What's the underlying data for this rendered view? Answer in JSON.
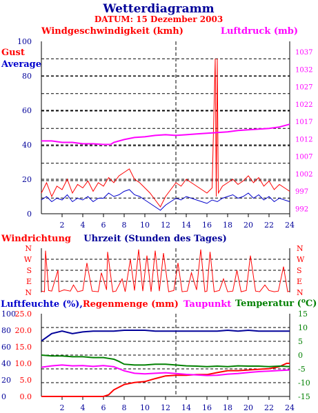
{
  "header": {
    "title": "Wetterdiagramm",
    "subtitle": "DATUM: 15 Dezember 2003"
  },
  "colors": {
    "red": "#ff0000",
    "blue": "#0000cc",
    "magenta": "#ff00ff",
    "green": "#008000",
    "darkblue": "#000099",
    "grid": "#000000"
  },
  "chart_data": [
    {
      "type": "line",
      "ylabel": "Windgeschwindigkeit (kmh)",
      "y2label": "Luftdruck (mb)",
      "legend_left": [
        "Gust",
        "Average"
      ],
      "xlim": [
        0,
        24
      ],
      "ylim": [
        0,
        100
      ],
      "y2lim": [
        990.5,
        1040
      ],
      "y_ticks": [
        "0",
        "20",
        "40",
        "60",
        "80",
        "100"
      ],
      "y2_ticks": [
        "992",
        "997",
        "1002",
        "1007",
        "1012",
        "1017",
        "1022",
        "1027",
        "1032",
        "1037"
      ],
      "x_ticks": [
        "2",
        "4",
        "6",
        "8",
        "10",
        "12",
        "14",
        "16",
        "18",
        "20",
        "22",
        "24"
      ],
      "grid": true,
      "series": [
        {
          "name": "Gust",
          "color": "red",
          "axis": "left",
          "x": [
            0,
            0.5,
            1,
            1.5,
            2,
            2.5,
            3,
            3.5,
            4,
            4.5,
            5,
            5.5,
            6,
            6.5,
            7,
            7.5,
            8,
            8.5,
            9,
            9.5,
            10,
            10.5,
            11,
            11.5,
            12,
            12.5,
            13,
            13.5,
            14,
            14.5,
            15,
            15.5,
            16,
            16.5,
            16.8,
            16.9,
            17,
            17.1,
            17.5,
            18,
            18.5,
            19,
            19.5,
            20,
            20.5,
            21,
            21.5,
            22,
            22.5,
            23,
            23.5,
            24
          ],
          "values": [
            12,
            18,
            10,
            16,
            14,
            20,
            12,
            17,
            15,
            19,
            13,
            18,
            16,
            21,
            18,
            22,
            24,
            26,
            20,
            18,
            15,
            12,
            8,
            4,
            10,
            14,
            18,
            16,
            20,
            18,
            16,
            14,
            12,
            15,
            90,
            10,
            90,
            12,
            16,
            18,
            20,
            17,
            19,
            22,
            18,
            21,
            16,
            19,
            14,
            17,
            15,
            13
          ]
        },
        {
          "name": "Average",
          "color": "blue",
          "axis": "left",
          "x": [
            0,
            0.5,
            1,
            1.5,
            2,
            2.5,
            3,
            3.5,
            4,
            4.5,
            5,
            5.5,
            6,
            6.5,
            7,
            7.5,
            8,
            8.5,
            9,
            9.5,
            10,
            10.5,
            11,
            11.5,
            12,
            12.5,
            13,
            13.5,
            14,
            14.5,
            15,
            15.5,
            16,
            16.5,
            17,
            17.5,
            18,
            18.5,
            19,
            19.5,
            20,
            20.5,
            21,
            21.5,
            22,
            22.5,
            23,
            23.5,
            24
          ],
          "values": [
            8,
            10,
            7,
            9,
            8,
            11,
            7,
            9,
            8,
            10,
            7,
            9,
            9,
            12,
            10,
            11,
            13,
            14,
            11,
            10,
            8,
            6,
            4,
            2,
            5,
            7,
            9,
            8,
            10,
            9,
            8,
            7,
            6,
            8,
            7,
            9,
            10,
            11,
            9,
            10,
            12,
            9,
            11,
            8,
            10,
            7,
            9,
            8,
            7
          ]
        },
        {
          "name": "Luftdruck",
          "color": "magenta",
          "axis": "right",
          "x": [
            0,
            1,
            2,
            3,
            4,
            5,
            6,
            6.7,
            7,
            8,
            9,
            10,
            11,
            12,
            13,
            14,
            15,
            16,
            17,
            18,
            19,
            20,
            21,
            22,
            23,
            24
          ],
          "values": [
            1011.4,
            1011.4,
            1011.0,
            1011.0,
            1010.6,
            1010.6,
            1010.4,
            1010.4,
            1011.0,
            1011.8,
            1012.4,
            1012.6,
            1013.0,
            1013.2,
            1013.0,
            1013.2,
            1013.4,
            1013.6,
            1013.8,
            1014.0,
            1014.4,
            1014.6,
            1014.8,
            1015.0,
            1015.4,
            1016.2
          ]
        }
      ]
    },
    {
      "type": "line",
      "ylabel": "Windrichtung",
      "xlabel": "Uhrzeit (Stunden des Tages)",
      "xlim": [
        0,
        24
      ],
      "y_ticks": [
        "N",
        "W",
        "S",
        "E",
        "N"
      ],
      "y_values": [
        0,
        90,
        180,
        270,
        360
      ],
      "grid": true,
      "series": [
        {
          "name": "Windrichtung",
          "color": "red",
          "x": [
            0,
            0.3,
            0.4,
            0.7,
            1.0,
            1.6,
            1.7,
            2.2,
            2.8,
            3.1,
            3.5,
            4.0,
            4.4,
            4.9,
            5.5,
            5.8,
            6.3,
            6.4,
            6.9,
            7.2,
            7.8,
            8.1,
            8.6,
            9.0,
            9.4,
            9.8,
            10.2,
            10.6,
            11.0,
            11.4,
            11.8,
            12.3,
            12.8,
            13.2,
            13.6,
            14.1,
            14.5,
            15.0,
            15.4,
            15.8,
            16.0,
            16.3,
            16.7,
            17.2,
            17.6,
            18.0,
            18.5,
            18.9,
            19.3,
            19.8,
            20.2,
            20.7,
            21.1,
            21.6,
            22.0,
            22.5,
            22.9,
            23.4,
            23.8,
            24
          ],
          "values": [
            350,
            355,
            20,
            345,
            350,
            180,
            355,
            340,
            350,
            300,
            355,
            345,
            120,
            350,
            355,
            200,
            340,
            30,
            355,
            350,
            250,
            355,
            90,
            345,
            10,
            350,
            60,
            355,
            20,
            350,
            40,
            355,
            345,
            120,
            355,
            350,
            200,
            340,
            10,
            355,
            350,
            30,
            355,
            345,
            250,
            355,
            350,
            180,
            355,
            345,
            60,
            350,
            355,
            300,
            345,
            355,
            350,
            150,
            355,
            350
          ]
        }
      ]
    },
    {
      "type": "line",
      "xlim": [
        0,
        24
      ],
      "ylim": [
        0,
        100
      ],
      "y2lim": [
        -15,
        15
      ],
      "labels": {
        "humidity_rain": "Luftfeuchte (%),",
        "rain": "Regenmenge (mm)",
        "dewpoint": "Taupunkt",
        "temperature": "Temperatur (",
        "temperature_unit": "C)",
        "degree": "o"
      },
      "y_ticks_humidity": [
        "0",
        "20",
        "40",
        "60",
        "80",
        "100"
      ],
      "y_ticks_rain": [
        "0.0",
        "5.0",
        "10.0",
        "15.0",
        "20.0",
        "25.0"
      ],
      "y2_ticks": [
        "-15",
        "-10",
        "-5",
        "0",
        "5",
        "10",
        "15"
      ],
      "x_ticks": [
        "2",
        "4",
        "6",
        "8",
        "10",
        "12",
        "14",
        "16",
        "18",
        "20",
        "22",
        "24"
      ],
      "grid": true,
      "series": [
        {
          "name": "Luftfeuchte",
          "color": "darkblue",
          "axis": "humidity",
          "x": [
            0,
            1,
            2,
            3,
            4,
            5,
            6,
            7,
            8,
            9,
            10,
            11,
            12,
            13,
            14,
            15,
            16,
            17,
            18,
            19,
            20,
            21,
            22,
            23,
            24
          ],
          "values": [
            67,
            76,
            79,
            76,
            78,
            79,
            79,
            79,
            80,
            80,
            80,
            79,
            79,
            79,
            79,
            79,
            79,
            79,
            80,
            79,
            80,
            79,
            79,
            79,
            79
          ]
        },
        {
          "name": "Regenmenge",
          "color": "red",
          "axis": "rain",
          "x": [
            0,
            1,
            2,
            3,
            4,
            5,
            6,
            6.5,
            7,
            8,
            9,
            10,
            11,
            12,
            13,
            14,
            15,
            16,
            17,
            18,
            19,
            20,
            21,
            22,
            23,
            23.7,
            24
          ],
          "values": [
            0,
            0,
            0,
            0,
            0,
            0,
            0,
            0.5,
            2,
            3.6,
            4.2,
            4.5,
            5.4,
            6.2,
            6.4,
            6.4,
            6.6,
            6.6,
            7.2,
            7.8,
            7.8,
            8,
            8.2,
            8.4,
            9,
            10,
            10
          ]
        },
        {
          "name": "Taupunkt",
          "color": "magenta",
          "axis": "temperature",
          "x": [
            0,
            1,
            2,
            3,
            4,
            5,
            6,
            7,
            8,
            9,
            10,
            11,
            12,
            13,
            14,
            15,
            16,
            17,
            18,
            19,
            20,
            21,
            22,
            23,
            24
          ],
          "values": [
            -4.4,
            -3.9,
            -3.6,
            -3.9,
            -3.8,
            -4.1,
            -3.8,
            -4.2,
            -5.7,
            -6.6,
            -6.8,
            -6.6,
            -6.4,
            -6.7,
            -7.0,
            -7.2,
            -7.4,
            -7.3,
            -6.9,
            -6.7,
            -6.3,
            -6.0,
            -5.8,
            -5.6,
            -5.4
          ]
        },
        {
          "name": "Temperatur",
          "color": "green",
          "axis": "temperature",
          "x": [
            0,
            1,
            2,
            3,
            4,
            5,
            6,
            6.5,
            7,
            7.5,
            8,
            9,
            10,
            11,
            12,
            13,
            14,
            15,
            16,
            17,
            18,
            19,
            20,
            21,
            22,
            23,
            24
          ],
          "values": [
            0.0,
            -0.3,
            -0.3,
            -0.6,
            -0.6,
            -0.9,
            -0.9,
            -1.2,
            -1.5,
            -2.3,
            -3.3,
            -3.6,
            -3.6,
            -3.3,
            -3.3,
            -3.6,
            -3.9,
            -4.0,
            -4.2,
            -4.0,
            -4.2,
            -3.9,
            -4.0,
            -4.0,
            -4.2,
            -4.0,
            -4.2
          ]
        }
      ]
    }
  ]
}
